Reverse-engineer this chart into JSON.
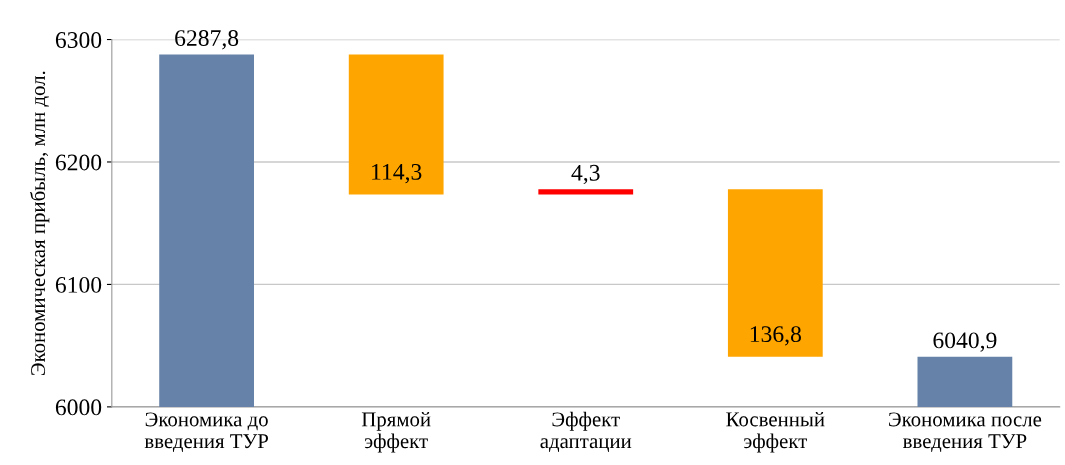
{
  "chart_data": {
    "type": "bar",
    "ylabel": "Экономическая прибыль, млн дол.",
    "categories": [
      "Экономика до\nвведения ТУР",
      "Прямой\nэффект",
      "Эффект\nадаптации",
      "Косвенный\nэффект",
      "Экономика после\nвведения ТУР"
    ],
    "base": [
      6000,
      6287.8,
      6173.5,
      6177.8,
      6000
    ],
    "values": [
      287.8,
      -114.3,
      4.3,
      -136.8,
      40.9
    ],
    "colors": [
      "#6782a8",
      "#ffa500",
      "#ff0000",
      "#ffa500",
      "#6782a8"
    ],
    "value_labels": [
      "6287,8",
      "114,3",
      "4,3",
      "136,8",
      "6040,9"
    ],
    "ylim": [
      6000,
      6300
    ],
    "yticks": [
      6000,
      6100,
      6200,
      6300
    ],
    "grid": "y"
  }
}
